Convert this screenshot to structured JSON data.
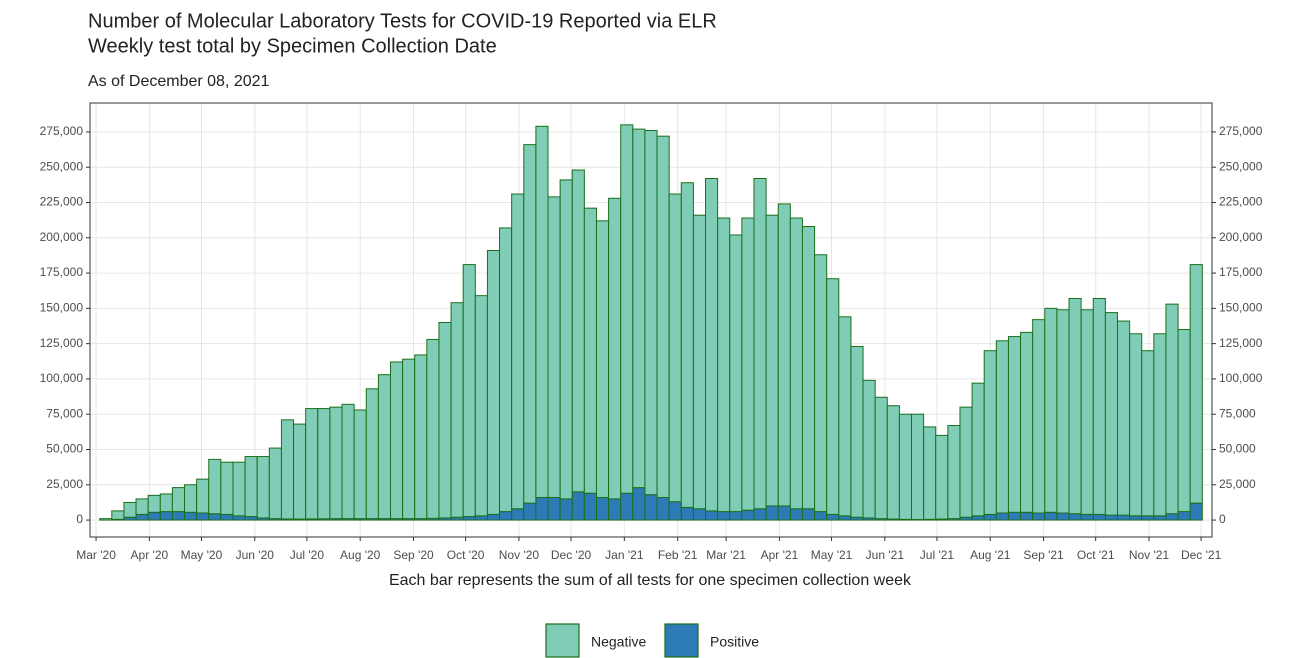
{
  "chart_data": {
    "type": "stacked_bar",
    "title": "Number of Molecular Laboratory Tests for COVID-19 Reported via ELR",
    "subtitle": "Weekly test total by Specimen Collection Date",
    "note": "As of December 08, 2021",
    "x_label": "Each bar represents the sum of all tests for one specimen collection week",
    "x": [
      0,
      1,
      2,
      3,
      4,
      5,
      6,
      7,
      8,
      9,
      10,
      11,
      12,
      13,
      14,
      15,
      16,
      17,
      18,
      19,
      20,
      21,
      22,
      23,
      24,
      25,
      26,
      27,
      28,
      29,
      30,
      31,
      32,
      33,
      34,
      35,
      36,
      37,
      38,
      39,
      40,
      41,
      42,
      43,
      44,
      45,
      46,
      47,
      48,
      49,
      50,
      51,
      52,
      53,
      54,
      55,
      56,
      57,
      58,
      59,
      60,
      61,
      62,
      63,
      64,
      65,
      66,
      67,
      68,
      69,
      70,
      71,
      72,
      73,
      74,
      75,
      76,
      77,
      78,
      79,
      80,
      81,
      82,
      83,
      84,
      85,
      86,
      87,
      88,
      89,
      90
    ],
    "series": [
      {
        "name": "Negative",
        "color": "#7fcdb6",
        "values": [
          1000,
          6000,
          10500,
          11000,
          12000,
          12500,
          17000,
          19500,
          24000,
          38500,
          37000,
          38000,
          42500,
          43500,
          50000,
          70200,
          67300,
          78200,
          78100,
          79000,
          81000,
          77000,
          92000,
          102000,
          111000,
          113000,
          116000,
          126800,
          138500,
          152000,
          178500,
          156000,
          187000,
          201000,
          223000,
          254000,
          263000,
          213000,
          226000,
          228000,
          202000,
          196000,
          213000,
          261000,
          254000,
          258000,
          256000,
          218000,
          230000,
          208000,
          235500,
          208000,
          196000,
          207000,
          234000,
          206000,
          214000,
          206000,
          200000,
          182000,
          167000,
          141000,
          121000,
          97500,
          86000,
          80300,
          74500,
          74600,
          65500,
          59300,
          66000,
          78000,
          94000,
          116000,
          122000,
          124500,
          127500,
          137000,
          144500,
          144000,
          152500,
          145000,
          153000,
          143500,
          137500,
          129000,
          117000,
          129000,
          148500,
          129000,
          169000
        ]
      },
      {
        "name": "Positive",
        "color": "#2c7bb6",
        "values": [
          0,
          500,
          2000,
          4000,
          5500,
          6000,
          6000,
          5500,
          5000,
          4500,
          4000,
          3000,
          2500,
          1500,
          1000,
          800,
          700,
          800,
          900,
          1000,
          1000,
          1000,
          1000,
          1000,
          1000,
          1000,
          1000,
          1200,
          1500,
          2000,
          2500,
          3000,
          4000,
          6000,
          8000,
          12000,
          16000,
          16000,
          15000,
          20000,
          19000,
          16000,
          15000,
          19000,
          23000,
          18000,
          16000,
          13000,
          9000,
          8000,
          6500,
          6000,
          6000,
          7000,
          8000,
          10000,
          10000,
          8000,
          8000,
          6000,
          4000,
          3000,
          2000,
          1500,
          1000,
          700,
          500,
          400,
          500,
          700,
          1000,
          2000,
          3000,
          4000,
          5000,
          5500,
          5500,
          5000,
          5500,
          5000,
          4500,
          4000,
          4000,
          3500,
          3500,
          3000,
          3000,
          3000,
          4500,
          6000,
          12000
        ]
      }
    ],
    "stack_order": [
      "Positive",
      "Negative"
    ],
    "bar_edge_color": "#1b6e1b",
    "xlim": [
      -1.3,
      91.3
    ],
    "xticks": [
      {
        "value": -0.8,
        "label": "Mar '20"
      },
      {
        "value": 3.6,
        "label": "Apr '20"
      },
      {
        "value": 7.9,
        "label": "May '20"
      },
      {
        "value": 12.3,
        "label": "Jun '20"
      },
      {
        "value": 16.6,
        "label": "Jul '20"
      },
      {
        "value": 21.0,
        "label": "Aug '20"
      },
      {
        "value": 25.4,
        "label": "Sep '20"
      },
      {
        "value": 29.7,
        "label": "Oct '20"
      },
      {
        "value": 34.1,
        "label": "Nov '20"
      },
      {
        "value": 38.4,
        "label": "Dec '20"
      },
      {
        "value": 42.8,
        "label": "Jan '21"
      },
      {
        "value": 47.2,
        "label": "Feb '21"
      },
      {
        "value": 51.2,
        "label": "Mar '21"
      },
      {
        "value": 55.6,
        "label": "Apr '21"
      },
      {
        "value": 59.9,
        "label": "May '21"
      },
      {
        "value": 64.3,
        "label": "Jun '21"
      },
      {
        "value": 68.6,
        "label": "Jul '21"
      },
      {
        "value": 73.0,
        "label": "Aug '21"
      },
      {
        "value": 77.4,
        "label": "Sep '21"
      },
      {
        "value": 81.7,
        "label": "Oct '21"
      },
      {
        "value": 86.1,
        "label": "Nov '21"
      },
      {
        "value": 90.4,
        "label": "Dec '21"
      }
    ],
    "ylim": [
      -12000,
      295500
    ],
    "yticks": [
      0,
      {
        "value": 25000,
        "label": "25,000"
      },
      {
        "value": 50000,
        "label": "50,000"
      },
      {
        "value": 75000,
        "label": "75,000"
      },
      {
        "value": 100000,
        "label": "100,000"
      },
      {
        "value": 125000,
        "label": "125,000"
      },
      {
        "value": 150000,
        "label": "150,000"
      },
      {
        "value": 175000,
        "label": "175,000"
      },
      {
        "value": 200000,
        "label": "200,000"
      },
      {
        "value": 225000,
        "label": "225,000"
      },
      {
        "value": 250000,
        "label": "250,000"
      },
      {
        "value": 275000,
        "label": "275,000"
      }
    ],
    "secondary_y_axis": true,
    "grid": true,
    "legend_position": "bottom"
  }
}
